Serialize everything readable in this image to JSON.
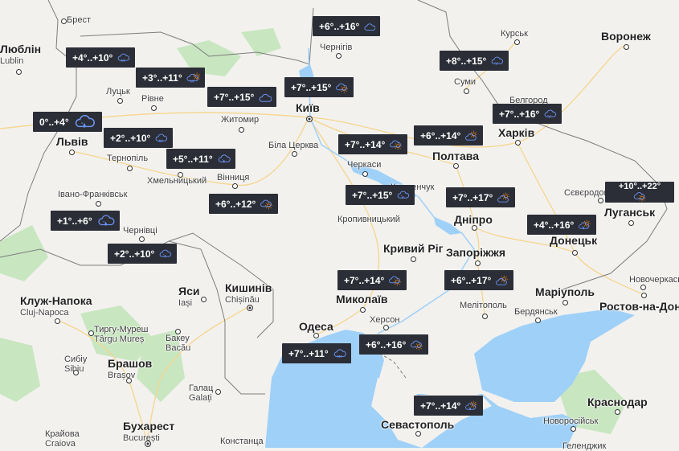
{
  "colors": {
    "land": "#f2f1ee",
    "water": "#9fd0f7",
    "forest": "#c8e6c0",
    "road": "#f9d98a",
    "border": "#7a7a7a",
    "badge_bg": "#2b2e36",
    "icon_cloud": "#6b93f2",
    "icon_sun": "#f08a1e"
  },
  "cities": [
    {
      "name": "Брест"
    },
    {
      "name": "Люблін",
      "sub": "Lublin"
    },
    {
      "name": "Луцьк"
    },
    {
      "name": "Рівне"
    },
    {
      "name": "Житомир"
    },
    {
      "name": "Київ"
    },
    {
      "name": "Чернігів"
    },
    {
      "name": "Курськ"
    },
    {
      "name": "Воронеж"
    },
    {
      "name": "Суми"
    },
    {
      "name": "Белгород"
    },
    {
      "name": "Харків"
    },
    {
      "name": "Полтава"
    },
    {
      "name": "Львів"
    },
    {
      "name": "Тернопіль"
    },
    {
      "name": "Хмельницький"
    },
    {
      "name": "Вінниця"
    },
    {
      "name": "Біла Церква"
    },
    {
      "name": "Черкаси"
    },
    {
      "name": "Кременчук"
    },
    {
      "name": "Кропивницький"
    },
    {
      "name": "Дніпро"
    },
    {
      "name": "Сєвєродонецьк"
    },
    {
      "name": "Луганськ"
    },
    {
      "name": "Донецьк"
    },
    {
      "name": "Кривий Ріг"
    },
    {
      "name": "Запоріжжя"
    },
    {
      "name": "Івано-Франківськ"
    },
    {
      "name": "Чернівці"
    },
    {
      "name": "Миколаїв"
    },
    {
      "name": "Херсон"
    },
    {
      "name": "Мелітополь"
    },
    {
      "name": "Бердянськ"
    },
    {
      "name": "Маріуполь"
    },
    {
      "name": "Новочеркаськ"
    },
    {
      "name": "Ростов-на-Дону"
    },
    {
      "name": "Одеса"
    },
    {
      "name": "Кишинів",
      "sub": "Chișinău"
    },
    {
      "name": "Яси",
      "sub": "Iași"
    },
    {
      "name": "Клуж-Напока",
      "sub": "Cluj-Napoca"
    },
    {
      "name": "Тиргу-Муреш",
      "sub": "Târgu Mureș"
    },
    {
      "name": "Бакеу",
      "sub": "Bacău"
    },
    {
      "name": "Сибіу",
      "sub": "Sibiu"
    },
    {
      "name": "Брашов",
      "sub": "Brașov"
    },
    {
      "name": "Галац",
      "sub": "Galați"
    },
    {
      "name": "Бухарест",
      "sub": "București"
    },
    {
      "name": "Крайова",
      "sub": "Craiova"
    },
    {
      "name": "Констанца"
    },
    {
      "name": "Севастополь"
    },
    {
      "name": "Краснодар"
    },
    {
      "name": "Новоросійськ"
    },
    {
      "name": "Геленджик"
    }
  ],
  "forecasts": [
    {
      "temp": "+6°..+16°",
      "icon": "cloud"
    },
    {
      "temp": "+4°..+10°",
      "icon": "rain"
    },
    {
      "temp": "+3°..+11°",
      "icon": "rain-sun"
    },
    {
      "temp": "+7°..+15°",
      "icon": "cloud"
    },
    {
      "temp": "+7°..+15°",
      "icon": "cloud-sun"
    },
    {
      "temp": "+8°..+15°",
      "icon": "drizzle"
    },
    {
      "temp": "0°..+4°",
      "icon": "drop"
    },
    {
      "temp": "+2°..+10°",
      "icon": "rain"
    },
    {
      "temp": "+5°..+11°",
      "icon": "drop"
    },
    {
      "temp": "+7°..+14°",
      "icon": "cloud-sun"
    },
    {
      "temp": "+6°..+14°",
      "icon": "sun-cloud"
    },
    {
      "temp": "+7°..+16°",
      "icon": "drizzle"
    },
    {
      "temp": "+6°..+12°",
      "icon": "cloud-sun"
    },
    {
      "temp": "+7°..+15°",
      "icon": "drop"
    },
    {
      "temp": "+7°..+17°",
      "icon": "sun-cloud"
    },
    {
      "temp": "+10°..+22°",
      "icon": "cloud-sun"
    },
    {
      "temp": "+4°..+16°",
      "icon": "drop-sun"
    },
    {
      "temp": "+1°..+6°",
      "icon": "drop"
    },
    {
      "temp": "+2°..+10°",
      "icon": "drop"
    },
    {
      "temp": "+7°..+14°",
      "icon": "cloud-sun"
    },
    {
      "temp": "+6°..+17°",
      "icon": "sun-cloud"
    },
    {
      "temp": "+7°..+11°",
      "icon": "rain"
    },
    {
      "temp": "+6°..+16°",
      "icon": "cloud-sun"
    },
    {
      "temp": "+7°..+14°",
      "icon": "drop-sun"
    }
  ]
}
